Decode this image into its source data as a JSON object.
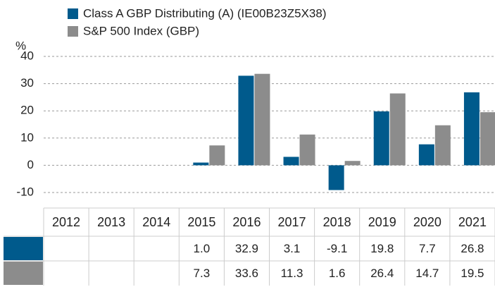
{
  "chart_data": {
    "type": "bar",
    "ylabel": "%",
    "categories": [
      "2012",
      "2013",
      "2014",
      "2015",
      "2016",
      "2017",
      "2018",
      "2019",
      "2020",
      "2021"
    ],
    "series": [
      {
        "name": "Class A GBP Distributing (A) (IE00B23Z5X38)",
        "color": "#005a8c",
        "values": [
          null,
          null,
          null,
          1.0,
          32.9,
          3.1,
          -9.1,
          19.8,
          7.7,
          26.8
        ],
        "value_labels": [
          null,
          null,
          null,
          "1.0",
          "32.9",
          "3.1",
          "-9.1",
          "19.8",
          "7.7",
          "26.8"
        ]
      },
      {
        "name": "S&P 500 Index (GBP)",
        "color": "#8c8c8c",
        "values": [
          null,
          null,
          null,
          7.3,
          33.6,
          11.3,
          1.6,
          26.4,
          14.7,
          19.5
        ],
        "value_labels": [
          null,
          null,
          null,
          "7.3",
          "33.6",
          "11.3",
          "1.6",
          "26.4",
          "14.7",
          "19.5"
        ]
      }
    ],
    "ylim": [
      -10,
      40
    ],
    "yticks": [
      40,
      30,
      20,
      10,
      0,
      -10
    ],
    "grid": true
  }
}
